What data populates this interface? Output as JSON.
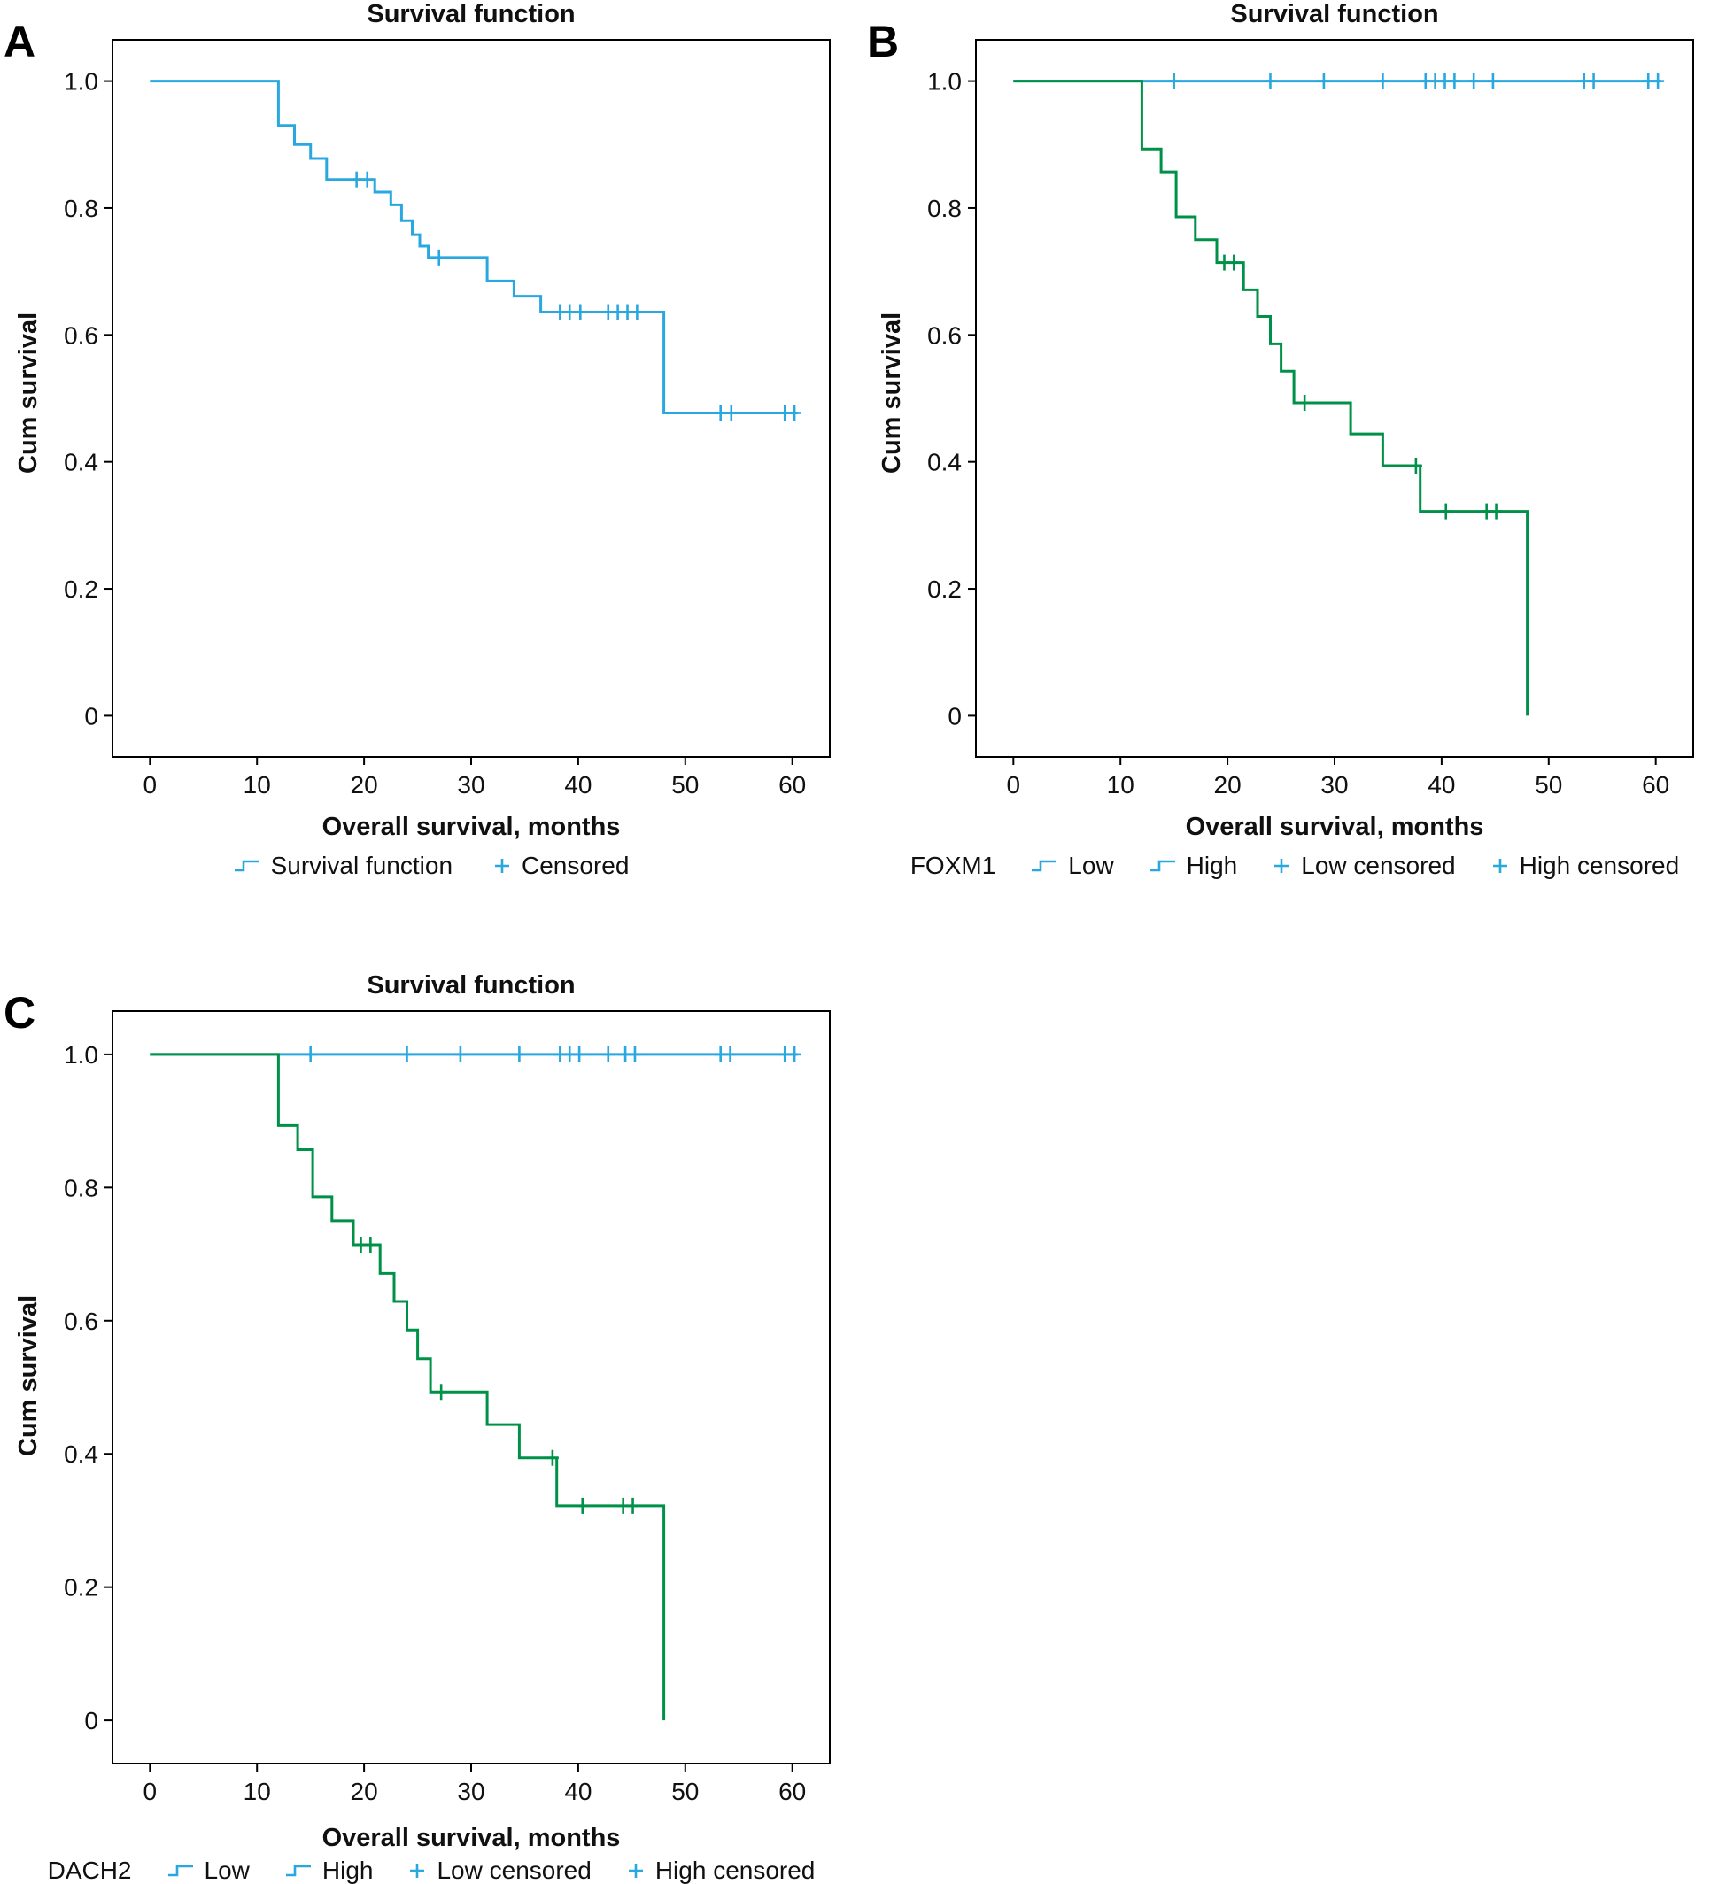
{
  "figure": {
    "background": "#ffffff"
  },
  "colors": {
    "blue": "#29A8E0",
    "green": "#009148",
    "axis": "#000000"
  },
  "chart_data": [
    {
      "type": "line",
      "panel_label": "A",
      "title": "Survival function",
      "xlabel": "Overall survival, months",
      "ylabel": "Cum survival",
      "xlim": [
        -3.5,
        63.5
      ],
      "ylim": [
        -0.065,
        1.065
      ],
      "xticks": [
        0,
        10,
        20,
        30,
        40,
        50,
        60
      ],
      "xtick_labels": [
        "0",
        "10",
        "20",
        "30",
        "40",
        "50",
        "60"
      ],
      "yticks": [
        0,
        0.2,
        0.4,
        0.6,
        0.8,
        1.0
      ],
      "ytick_labels": [
        "0",
        "0.2",
        "0.4",
        "0.6",
        "0.8",
        "1.0"
      ],
      "grid": false,
      "legend_position": "bottom",
      "series": [
        {
          "name": "Survival function",
          "color": "#29A8E0",
          "steps": [
            [
              0,
              1.0
            ],
            [
              12,
              0.93
            ],
            [
              13.5,
              0.9
            ],
            [
              15,
              0.878
            ],
            [
              16.5,
              0.845
            ],
            [
              21,
              0.825
            ],
            [
              22.5,
              0.805
            ],
            [
              23.5,
              0.78
            ],
            [
              24.5,
              0.758
            ],
            [
              25.2,
              0.74
            ],
            [
              26,
              0.722
            ],
            [
              31.5,
              0.685
            ],
            [
              34,
              0.661
            ],
            [
              36.5,
              0.636
            ],
            [
              48,
              0.477
            ],
            [
              60.5,
              0.477
            ]
          ],
          "censored": [
            [
              19.3,
              0.845
            ],
            [
              20.3,
              0.845
            ],
            [
              27,
              0.722
            ],
            [
              38.3,
              0.636
            ],
            [
              39.2,
              0.636
            ],
            [
              40.2,
              0.636
            ],
            [
              42.8,
              0.636
            ],
            [
              43.7,
              0.636
            ],
            [
              44.6,
              0.636
            ],
            [
              45.5,
              0.636
            ],
            [
              53.3,
              0.477
            ],
            [
              54.3,
              0.477
            ],
            [
              59.3,
              0.477
            ],
            [
              60.2,
              0.477
            ]
          ]
        }
      ],
      "legend": {
        "prefix": "",
        "items": [
          {
            "label": "Survival function",
            "symbol": "step",
            "color": "#29A8E0"
          },
          {
            "label": "Censored",
            "symbol": "plus",
            "color": "#29A8E0"
          }
        ]
      }
    },
    {
      "type": "line",
      "panel_label": "B",
      "title": "Survival function",
      "xlabel": "Overall survival, months",
      "ylabel": "Cum survival",
      "xlim": [
        -3.5,
        63.5
      ],
      "ylim": [
        -0.065,
        1.065
      ],
      "xticks": [
        0,
        10,
        20,
        30,
        40,
        50,
        60
      ],
      "xtick_labels": [
        "0",
        "10",
        "20",
        "30",
        "40",
        "50",
        "60"
      ],
      "yticks": [
        0,
        0.2,
        0.4,
        0.6,
        0.8,
        1.0
      ],
      "ytick_labels": [
        "0",
        "0.2",
        "0.4",
        "0.6",
        "0.8",
        "1.0"
      ],
      "grid": false,
      "legend_position": "bottom",
      "series": [
        {
          "name": "Low",
          "color": "#29A8E0",
          "steps": [
            [
              0,
              1.0
            ],
            [
              60.5,
              1.0
            ]
          ],
          "censored": [
            [
              15,
              1.0
            ],
            [
              24,
              1.0
            ],
            [
              29,
              1.0
            ],
            [
              34.5,
              1.0
            ],
            [
              38.5,
              1.0
            ],
            [
              39.4,
              1.0
            ],
            [
              40.3,
              1.0
            ],
            [
              41.2,
              1.0
            ],
            [
              43,
              1.0
            ],
            [
              44.8,
              1.0
            ],
            [
              53.3,
              1.0
            ],
            [
              54.2,
              1.0
            ],
            [
              59.3,
              1.0
            ],
            [
              60.2,
              1.0
            ]
          ]
        },
        {
          "name": "High",
          "color": "#009148",
          "steps": [
            [
              0,
              1.0
            ],
            [
              12,
              0.893
            ],
            [
              13.8,
              0.857
            ],
            [
              15.2,
              0.786
            ],
            [
              17,
              0.75
            ],
            [
              19,
              0.714
            ],
            [
              21.5,
              0.671
            ],
            [
              22.8,
              0.629
            ],
            [
              24,
              0.586
            ],
            [
              25,
              0.543
            ],
            [
              26.2,
              0.493
            ],
            [
              31.5,
              0.444
            ],
            [
              34.5,
              0.394
            ],
            [
              38,
              0.322
            ],
            [
              48,
              0.0
            ]
          ],
          "censored": [
            [
              19.7,
              0.714
            ],
            [
              20.6,
              0.714
            ],
            [
              27.2,
              0.493
            ],
            [
              37.6,
              0.394
            ],
            [
              40.4,
              0.322
            ],
            [
              44.2,
              0.322
            ],
            [
              45.1,
              0.322
            ]
          ]
        }
      ],
      "legend": {
        "prefix": "FOXM1",
        "items": [
          {
            "label": "Low",
            "symbol": "step",
            "color": "#29A8E0"
          },
          {
            "label": "High",
            "symbol": "step",
            "color": "#009148"
          },
          {
            "label": "Low censored",
            "symbol": "plus",
            "color": "#29A8E0"
          },
          {
            "label": "High censored",
            "symbol": "plus",
            "color": "#009148"
          }
        ]
      }
    },
    {
      "type": "line",
      "panel_label": "C",
      "title": "Survival function",
      "xlabel": "Overall survival, months",
      "ylabel": "Cum survival",
      "xlim": [
        -3.5,
        63.5
      ],
      "ylim": [
        -0.065,
        1.065
      ],
      "xticks": [
        0,
        10,
        20,
        30,
        40,
        50,
        60
      ],
      "xtick_labels": [
        "0",
        "10",
        "20",
        "30",
        "40",
        "50",
        "60"
      ],
      "yticks": [
        0,
        0.2,
        0.4,
        0.6,
        0.8,
        1.0
      ],
      "ytick_labels": [
        "0",
        "0.2",
        "0.4",
        "0.6",
        "0.8",
        "1.0"
      ],
      "grid": false,
      "legend_position": "bottom",
      "series": [
        {
          "name": "Low",
          "color": "#29A8E0",
          "steps": [
            [
              0,
              1.0
            ],
            [
              60.5,
              1.0
            ]
          ],
          "censored": [
            [
              15,
              1.0
            ],
            [
              24,
              1.0
            ],
            [
              29,
              1.0
            ],
            [
              34.5,
              1.0
            ],
            [
              38.3,
              1.0
            ],
            [
              39.2,
              1.0
            ],
            [
              40.1,
              1.0
            ],
            [
              42.8,
              1.0
            ],
            [
              44.4,
              1.0
            ],
            [
              45.3,
              1.0
            ],
            [
              53.3,
              1.0
            ],
            [
              54.2,
              1.0
            ],
            [
              59.3,
              1.0
            ],
            [
              60.2,
              1.0
            ]
          ]
        },
        {
          "name": "High",
          "color": "#009148",
          "steps": [
            [
              0,
              1.0
            ],
            [
              12,
              0.893
            ],
            [
              13.8,
              0.857
            ],
            [
              15.2,
              0.786
            ],
            [
              17,
              0.75
            ],
            [
              19,
              0.714
            ],
            [
              21.5,
              0.671
            ],
            [
              22.8,
              0.629
            ],
            [
              24,
              0.586
            ],
            [
              25,
              0.543
            ],
            [
              26.2,
              0.493
            ],
            [
              31.5,
              0.444
            ],
            [
              34.5,
              0.394
            ],
            [
              38,
              0.322
            ],
            [
              48,
              0.0
            ]
          ],
          "censored": [
            [
              19.7,
              0.714
            ],
            [
              20.6,
              0.714
            ],
            [
              27.2,
              0.493
            ],
            [
              37.6,
              0.394
            ],
            [
              40.4,
              0.322
            ],
            [
              44.2,
              0.322
            ],
            [
              45.1,
              0.322
            ]
          ]
        }
      ],
      "legend": {
        "prefix": "DACH2",
        "items": [
          {
            "label": "Low",
            "symbol": "step",
            "color": "#29A8E0"
          },
          {
            "label": "High",
            "symbol": "step",
            "color": "#009148"
          },
          {
            "label": "Low censored",
            "symbol": "plus",
            "color": "#29A8E0"
          },
          {
            "label": "High censored",
            "symbol": "plus",
            "color": "#009148"
          }
        ]
      }
    }
  ]
}
